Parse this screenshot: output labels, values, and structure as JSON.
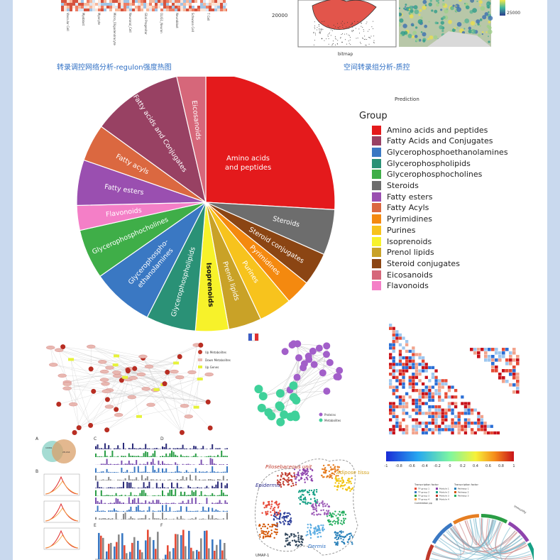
{
  "captions": {
    "regulon": "转录调控网络分析-regulon强度热图",
    "spatial": "空间转录组分析-质控"
  },
  "heatmap_axis_labels": [
    "Vascular Cell",
    "Myoblast",
    "Myocyte",
    "Micro_Oligodendrocyte",
    "Neuronal_Cell",
    "Glial Progenitor",
    "OLIG1_Neuron",
    "Neuroblast",
    "Schwann Cell",
    "T Cell"
  ],
  "violin_panel": {
    "tick": "20000",
    "xlabel": "bitmap"
  },
  "spatial_scale": {
    "tick": "25000"
  },
  "chart_data": {
    "type": "pie",
    "title": "Prediction",
    "legend_title": "Group",
    "categories": [
      "Amino acids and peptides",
      "Fatty Acids and Conjugates",
      "Glycerophosphoethanolamines",
      "Glycerophospholipids",
      "Glycerophosphocholines",
      "Steroids",
      "Fatty esters",
      "Fatty Acyls",
      "Pyrimidines",
      "Purines",
      "Isoprenoids",
      "Prenol lipids",
      "Steroid conjugates",
      "Eicosanoids",
      "Flavonoids"
    ],
    "colors": [
      "#e41a1c",
      "#984163",
      "#3a78c3",
      "#2a9176",
      "#3fae48",
      "#6d6d6d",
      "#9a4fb0",
      "#db6840",
      "#f4890f",
      "#f7c31d",
      "#f7f22a",
      "#c9a227",
      "#8b4513",
      "#d6677a",
      "#f47fc7"
    ],
    "slices": [
      {
        "category": "Amino acids and peptides",
        "label": "Amino acids\nand peptides",
        "value": 25.0
      },
      {
        "category": "Steroids",
        "label": "Steroids",
        "value": 5.5
      },
      {
        "category": "Steroid conjugates",
        "label": "Steroid conjugates",
        "value": 4.0
      },
      {
        "category": "Pyrimidines",
        "label": "Pyrimidines",
        "value": 3.0
      },
      {
        "category": "Purines",
        "label": "Purines",
        "value": 4.0
      },
      {
        "category": "Prenol lipids",
        "label": "Prenol lipids",
        "value": 4.0
      },
      {
        "category": "Isoprenoids",
        "label": "Isoprenoids",
        "value": 4.0
      },
      {
        "category": "Glycerophospholipids",
        "label": "Glycerophospholipids",
        "value": 6.0
      },
      {
        "category": "Glycerophosphoethanolamines",
        "label": "Glycerophospho-\nethanolamines",
        "value": 7.5
      },
      {
        "category": "Glycerophosphocholines",
        "label": "Glycerophosphocholines",
        "value": 6.0
      },
      {
        "category": "Flavonoids",
        "label": "Flavonoids",
        "value": 3.0
      },
      {
        "category": "Fatty esters",
        "label": "Fatty esters",
        "value": 5.5
      },
      {
        "category": "Fatty Acyls",
        "label": "Fatty acyls",
        "value": 4.5
      },
      {
        "category": "Fatty Acids and Conjugates",
        "label": "Fatty acids and Conjugates",
        "value": 11.0
      },
      {
        "category": "Eicosanoids",
        "label": "Eicosanoids",
        "value": 3.5
      }
    ]
  },
  "network_legend": [
    "Up Metabolites",
    "Down Metabolites",
    "Up Genes"
  ],
  "network2_legend": [
    "Proteins",
    "Metabolites"
  ],
  "correlation_colorbar": {
    "ticks": [
      "-1",
      "-0.8",
      "-0.6",
      "-0.4",
      "-0.2",
      "0",
      "0.2",
      "0.4",
      "0.6",
      "0.8",
      "1"
    ]
  },
  "venn": {
    "panel": "A",
    "left": "10961",
    "right": "28,164"
  },
  "panel_letters": [
    "A",
    "B",
    "C",
    "D",
    "E",
    "F"
  ],
  "umap": {
    "labels": [
      "Pilosebaceous unit",
      "Adipose tissue",
      "Epidermis",
      "Dermis"
    ],
    "axis": "UMAP-1"
  },
  "chord_legend": {
    "group_left": "Transcription factor",
    "group_right": "Transcription factor",
    "extra": "Correlation pp",
    "arc_label": "Immunity",
    "items_left": [
      "TF group 1",
      "TF group 2",
      "TF group 3",
      "TF group 4"
    ],
    "items_mid": [
      "Module 1",
      "Module 2",
      "Module 3",
      "Module 4"
    ],
    "items_right": [
      "Pathway 1",
      "Pathway 2",
      "Pathway 3"
    ]
  }
}
